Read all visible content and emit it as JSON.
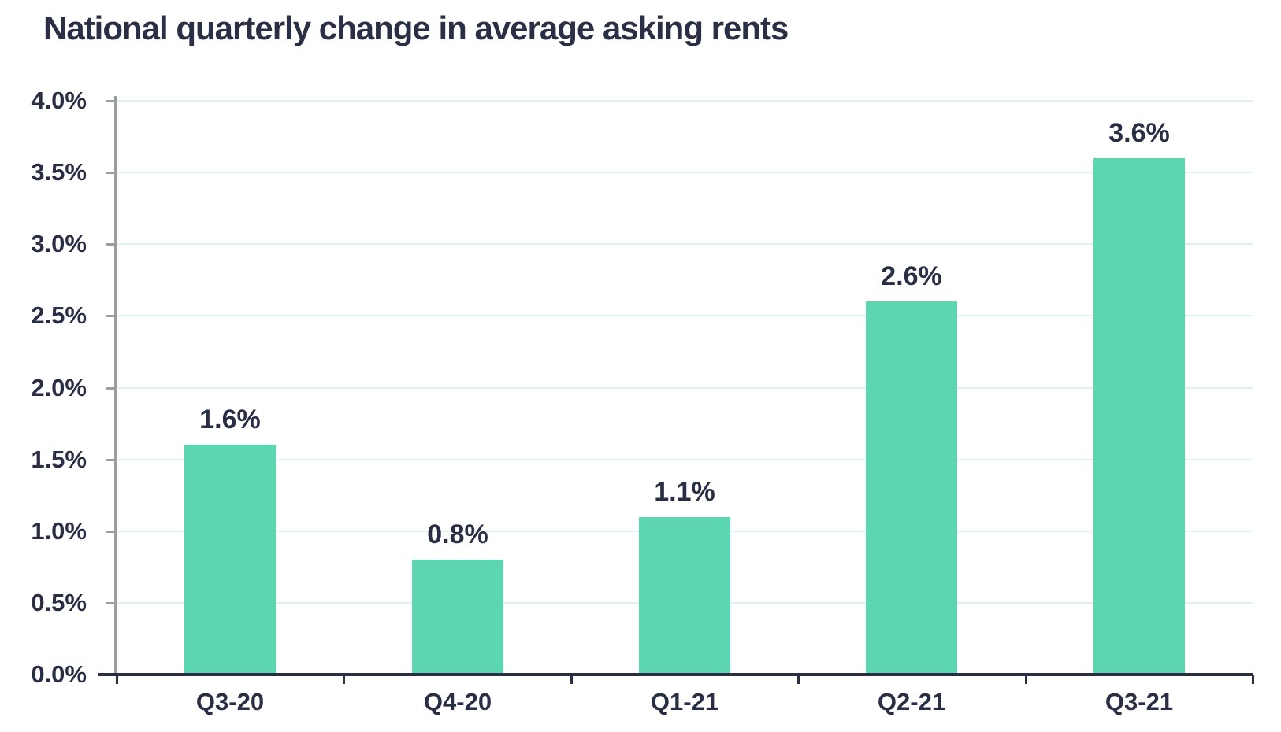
{
  "chart_data": {
    "type": "bar",
    "title": "National quarterly change in average asking rents",
    "categories": [
      "Q3-20",
      "Q4-20",
      "Q1-21",
      "Q2-21",
      "Q3-21"
    ],
    "values": [
      1.6,
      0.8,
      1.1,
      2.6,
      3.6
    ],
    "value_labels": [
      "1.6%",
      "0.8%",
      "1.1%",
      "2.6%",
      "3.6%"
    ],
    "xlabel": "",
    "ylabel": "",
    "ylim": [
      0,
      4
    ],
    "y_ticks": [
      {
        "value": 0.0,
        "label": "0.0%"
      },
      {
        "value": 0.5,
        "label": "0.5%"
      },
      {
        "value": 1.0,
        "label": "1.0%"
      },
      {
        "value": 1.5,
        "label": "1.5%"
      },
      {
        "value": 2.0,
        "label": "2.0%"
      },
      {
        "value": 2.5,
        "label": "2.5%"
      },
      {
        "value": 3.0,
        "label": "3.0%"
      },
      {
        "value": 3.5,
        "label": "3.5%"
      },
      {
        "value": 4.0,
        "label": "4.0%"
      }
    ],
    "grid": "horizontal",
    "legend": "none",
    "colors": {
      "bar": "#5cd6b0",
      "title_text": "#2b2f45",
      "label_text": "#2a2e44",
      "gridline": "#e0f2ed",
      "y_axis": "#9d9d9d",
      "x_axis": "#2a2e44",
      "background": "#ffffff"
    }
  }
}
